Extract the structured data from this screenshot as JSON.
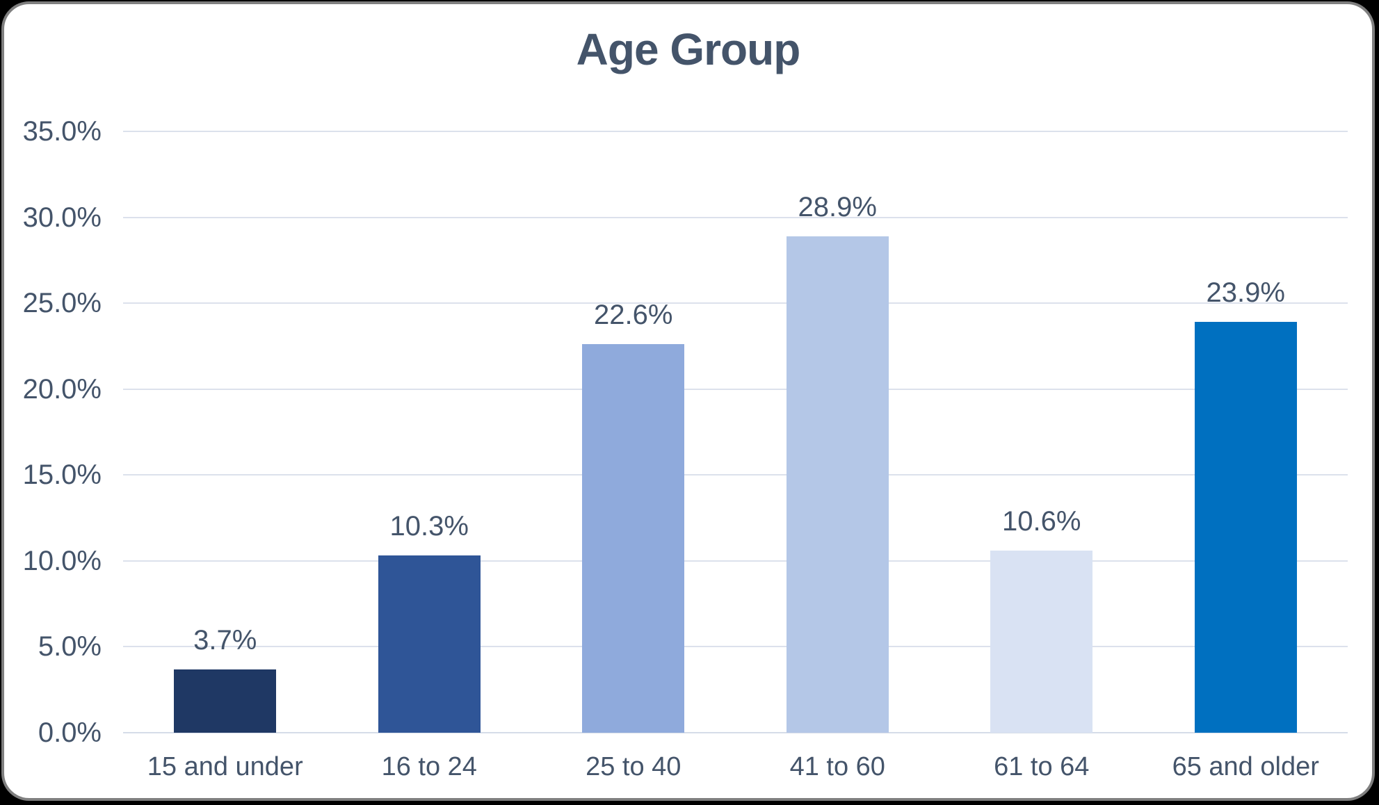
{
  "window": {
    "background_color": "#000000",
    "card_background": "#FFFFFF",
    "card_border_color": "#7F7F7F"
  },
  "chart_data": {
    "type": "bar",
    "title": "Age Group",
    "categories": [
      "15 and under",
      "16 to 24",
      "25 to 40",
      "41 to 60",
      "61 to 64",
      "65 and older"
    ],
    "values": [
      3.7,
      10.3,
      22.6,
      28.9,
      10.6,
      23.9
    ],
    "data_labels": [
      "3.7%",
      "10.3%",
      "22.6%",
      "28.9%",
      "10.6%",
      "23.9%"
    ],
    "bar_colors": [
      "#1F3864",
      "#2F5597",
      "#8FAADC",
      "#B4C7E7",
      "#D9E2F3",
      "#0070C0"
    ],
    "y_axis": {
      "min": 0,
      "max": 35,
      "step": 5,
      "tick_labels": [
        "0.0%",
        "5.0%",
        "10.0%",
        "15.0%",
        "20.0%",
        "25.0%",
        "30.0%",
        "35.0%"
      ]
    },
    "xlabel": "",
    "ylabel": "",
    "grid": true,
    "legend_position": "none",
    "title_color": "#44546A",
    "axis_text_color": "#44546A",
    "gridline_color": "#DCE1EC",
    "baseline_color": "#D5DCE8"
  }
}
